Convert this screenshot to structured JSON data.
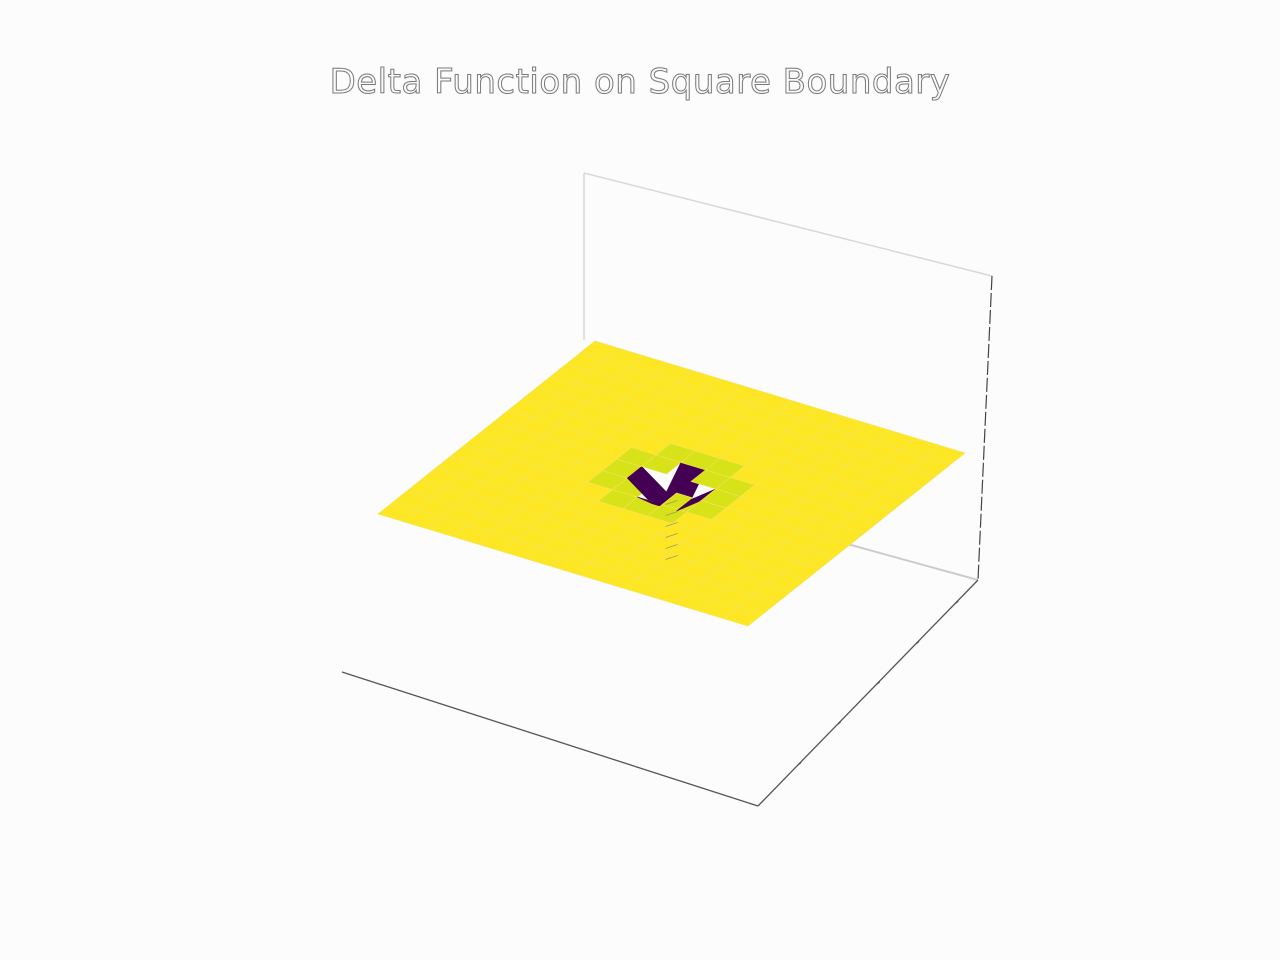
{
  "chart_data": {
    "type": "surface",
    "title": "Delta Function on Square Boundary",
    "xlabel": "",
    "ylabel": "",
    "zlabel": "",
    "grid_size": 15,
    "z_base": 0,
    "z_dip": -1,
    "dip_cells": [
      [
        6,
        7
      ],
      [
        7,
        6
      ],
      [
        7,
        7
      ],
      [
        7,
        8
      ],
      [
        8,
        7
      ]
    ],
    "near_cells": [
      [
        5,
        6
      ],
      [
        5,
        7
      ],
      [
        5,
        8
      ],
      [
        6,
        5
      ],
      [
        6,
        6
      ],
      [
        6,
        8
      ],
      [
        6,
        9
      ],
      [
        7,
        5
      ],
      [
        7,
        9
      ],
      [
        8,
        5
      ],
      [
        8,
        6
      ],
      [
        8,
        8
      ],
      [
        8,
        9
      ],
      [
        9,
        6
      ],
      [
        9,
        7
      ],
      [
        9,
        8
      ]
    ],
    "colormap": "viridis",
    "colors": {
      "high": "#fde725",
      "near": "#d8e219",
      "low": "#440154",
      "pane": "#d8d8d8",
      "axis": "#444444",
      "title_stroke": "#7a7a7a"
    },
    "grid": false,
    "legend": "none"
  }
}
